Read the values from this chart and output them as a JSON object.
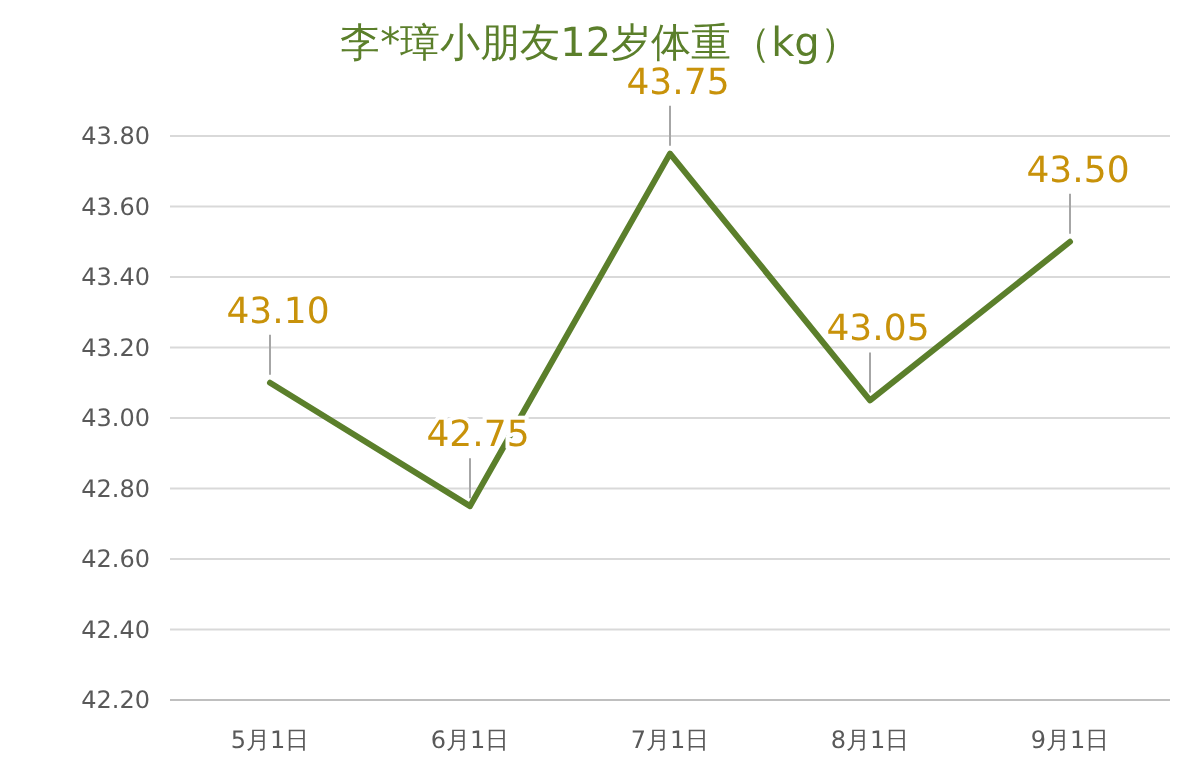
{
  "chart_data": {
    "type": "line",
    "title": "李*璋小朋友12岁体重（kg）",
    "categories": [
      "5月1日",
      "6月1日",
      "7月1日",
      "8月1日",
      "9月1日"
    ],
    "series": [
      {
        "color": "#5b7f2b",
        "values": [
          43.1,
          42.75,
          43.75,
          43.05,
          43.5
        ],
        "value_labels": [
          "43.10",
          "42.75",
          "43.75",
          "43.05",
          "43.50"
        ]
      }
    ],
    "ylim": [
      42.2,
      43.8
    ],
    "yticks": [
      {
        "value": 42.2,
        "label": "42.20"
      },
      {
        "value": 42.4,
        "label": "42.40"
      },
      {
        "value": 42.6,
        "label": "42.60"
      },
      {
        "value": 42.8,
        "label": "42.80"
      },
      {
        "value": 43.0,
        "label": "43.00"
      },
      {
        "value": 43.2,
        "label": "43.20"
      },
      {
        "value": 43.4,
        "label": "43.40"
      },
      {
        "value": 43.6,
        "label": "43.60"
      },
      {
        "value": 43.8,
        "label": "43.80"
      }
    ],
    "grid": "y",
    "marker": "none",
    "line_style": "solid"
  }
}
